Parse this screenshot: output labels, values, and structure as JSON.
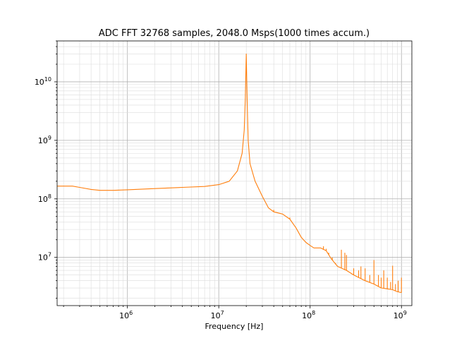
{
  "chart_data": {
    "type": "line",
    "title": "ADC FFT 32768 samples, 2048.0 Msps(1000 times accum.)",
    "xlabel": "Frequency [Hz]",
    "ylabel": "",
    "xscale": "log",
    "yscale": "log",
    "xlim": [
      170000,
      1300000000
    ],
    "ylim": [
      1500000,
      50000000000
    ],
    "grid": "major and minor, both axes",
    "x_tick_labels": [
      {
        "base": "10",
        "exp": "6",
        "value": 1000000
      },
      {
        "base": "10",
        "exp": "7",
        "value": 10000000
      },
      {
        "base": "10",
        "exp": "8",
        "value": 100000000
      },
      {
        "base": "10",
        "exp": "9",
        "value": 1000000000
      }
    ],
    "y_tick_labels": [
      {
        "base": "10",
        "exp": "7",
        "value": 10000000
      },
      {
        "base": "10",
        "exp": "8",
        "value": 100000000
      },
      {
        "base": "10",
        "exp": "9",
        "value": 1000000000
      },
      {
        "base": "10",
        "exp": "10",
        "value": 10000000000
      }
    ],
    "series": [
      {
        "color": "#ff7f0e",
        "points": [
          [
            170000,
            165000000
          ],
          [
            250000,
            165000000
          ],
          [
            300000,
            157000000
          ],
          [
            400000,
            145000000
          ],
          [
            500000,
            140000000
          ],
          [
            700000,
            140000000
          ],
          [
            1000000,
            143000000
          ],
          [
            2000000,
            150000000
          ],
          [
            4000000,
            157000000
          ],
          [
            7000000,
            163000000
          ],
          [
            10000000,
            175000000
          ],
          [
            13000000,
            200000000
          ],
          [
            16000000,
            300000000
          ],
          [
            18000000,
            600000000
          ],
          [
            19000000,
            1500000000
          ],
          [
            19500000,
            5000000000
          ],
          [
            20000000,
            30000000000
          ],
          [
            20500000,
            4000000000
          ],
          [
            21000000,
            1000000000
          ],
          [
            22000000,
            400000000
          ],
          [
            25000000,
            200000000
          ],
          [
            30000000,
            110000000
          ],
          [
            35000000,
            70000000
          ],
          [
            40000000,
            60000000
          ],
          [
            50000000,
            55000000
          ],
          [
            60000000,
            45000000
          ],
          [
            70000000,
            32000000
          ],
          [
            80000000,
            22000000
          ],
          [
            90000000,
            18000000
          ],
          [
            100000000,
            16000000
          ],
          [
            110000000,
            14500000
          ],
          [
            130000000,
            14500000
          ],
          [
            150000000,
            13000000
          ],
          [
            170000000,
            9500000
          ],
          [
            200000000,
            7000000
          ],
          [
            250000000,
            6000000
          ],
          [
            300000000,
            5000000
          ],
          [
            400000000,
            4000000
          ],
          [
            500000000,
            3500000
          ],
          [
            600000000,
            3000000
          ],
          [
            700000000,
            2900000
          ],
          [
            800000000,
            2800000
          ],
          [
            900000000,
            2600000
          ],
          [
            1000000000,
            2500000
          ]
        ],
        "spikes": [
          [
            40000000,
            65000000
          ],
          [
            60000000,
            48000000
          ],
          [
            140000000,
            15500000
          ],
          [
            150000000,
            14000000
          ],
          [
            160000000,
            12000000
          ],
          [
            175000000,
            10000000
          ],
          [
            190000000,
            8000000
          ],
          [
            220000000,
            13500000
          ],
          [
            240000000,
            12000000
          ],
          [
            250000000,
            11000000
          ],
          [
            300000000,
            6500000
          ],
          [
            340000000,
            6000000
          ],
          [
            360000000,
            7000000
          ],
          [
            400000000,
            6500000
          ],
          [
            450000000,
            5000000
          ],
          [
            500000000,
            9000000
          ],
          [
            560000000,
            5000000
          ],
          [
            600000000,
            4500000
          ],
          [
            640000000,
            6000000
          ],
          [
            700000000,
            4500000
          ],
          [
            760000000,
            3800000
          ],
          [
            800000000,
            7200000
          ],
          [
            860000000,
            3500000
          ],
          [
            920000000,
            4000000
          ],
          [
            1000000000,
            4500000
          ]
        ]
      }
    ]
  }
}
